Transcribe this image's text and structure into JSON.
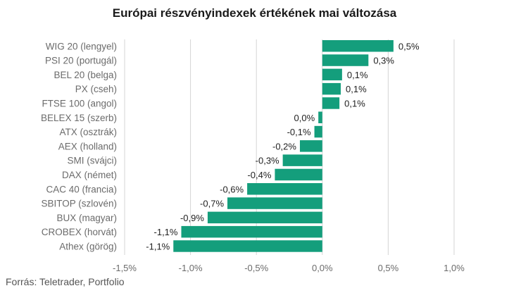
{
  "chart_data": {
    "type": "bar",
    "orientation": "horizontal",
    "title": "Európai részvényindexek értékének mai változása",
    "source": "Forrás: Teletrader, Portfolio",
    "categories": [
      "WIG 20 (lengyel)",
      "PSI 20 (portugál)",
      "BEL 20 (belga)",
      "PX (cseh)",
      "FTSE 100 (angol)",
      "BELEX 15 (szerb)",
      "ATX (osztrák)",
      "AEX (holland)",
      "SMI (svájci)",
      "DAX (német)",
      "CAC 40 (francia)",
      "SBITOP (szlovén)",
      "BUX (magyar)",
      "CROBEX (horvát)",
      "Athex (görög)"
    ],
    "values": [
      0.54,
      0.35,
      0.15,
      0.14,
      0.13,
      -0.03,
      -0.06,
      -0.17,
      -0.3,
      -0.36,
      -0.57,
      -0.72,
      -0.87,
      -1.07,
      -1.13
    ],
    "value_labels": [
      "0,5%",
      "0,3%",
      "0,1%",
      "0,1%",
      "0,1%",
      "0,0%",
      "-0,1%",
      "-0,2%",
      "-0,3%",
      "-0,4%",
      "-0,6%",
      "-0,7%",
      "-0,9%",
      "-1,1%",
      "-1,1%"
    ],
    "xlim": [
      -1.5,
      1.0
    ],
    "xticks": [
      -1.5,
      -1.0,
      -0.5,
      0.0,
      0.5,
      1.0
    ],
    "xtick_labels": [
      "-1,5%",
      "-1,0%",
      "-0,5%",
      "0,0%",
      "0,5%",
      "1,0%"
    ],
    "grid": true,
    "legend": "none",
    "colors": {
      "bar": "#149e7c",
      "grid": "#d4d4d4",
      "label": "#6b6b6b",
      "value": "#222222"
    }
  }
}
